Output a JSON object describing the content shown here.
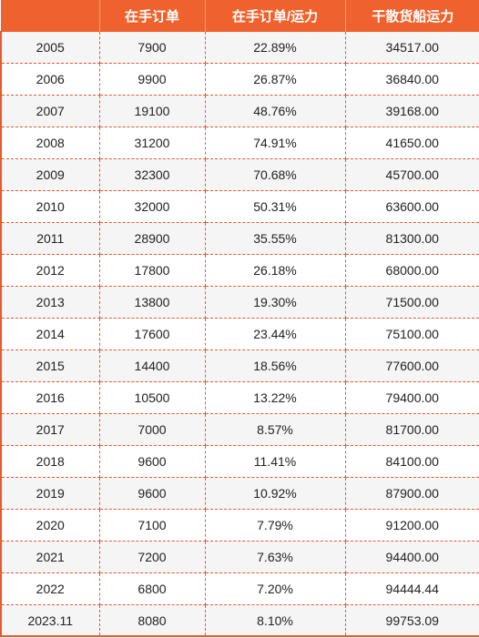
{
  "table": {
    "headers": [
      "",
      "在手订单",
      "在手订单/运力",
      "干散货船运力"
    ],
    "rows": [
      [
        "2005",
        "7900",
        "22.89%",
        "34517.00"
      ],
      [
        "2006",
        "9900",
        "26.87%",
        "36840.00"
      ],
      [
        "2007",
        "19100",
        "48.76%",
        "39168.00"
      ],
      [
        "2008",
        "31200",
        "74.91%",
        "41650.00"
      ],
      [
        "2009",
        "32300",
        "70.68%",
        "45700.00"
      ],
      [
        "2010",
        "32000",
        "50.31%",
        "63600.00"
      ],
      [
        "2011",
        "28900",
        "35.55%",
        "81300.00"
      ],
      [
        "2012",
        "17800",
        "26.18%",
        "68000.00"
      ],
      [
        "2013",
        "13800",
        "19.30%",
        "71500.00"
      ],
      [
        "2014",
        "17600",
        "23.44%",
        "75100.00"
      ],
      [
        "2015",
        "14400",
        "18.56%",
        "77600.00"
      ],
      [
        "2016",
        "10500",
        "13.22%",
        "79400.00"
      ],
      [
        "2017",
        "7000",
        "8.57%",
        "81700.00"
      ],
      [
        "2018",
        "9600",
        "11.41%",
        "84100.00"
      ],
      [
        "2019",
        "9600",
        "10.92%",
        "87900.00"
      ],
      [
        "2020",
        "7100",
        "7.79%",
        "91200.00"
      ],
      [
        "2021",
        "7200",
        "7.63%",
        "94400.00"
      ],
      [
        "2022",
        "6800",
        "7.20%",
        "94444.44"
      ],
      [
        "2023.11",
        "8080",
        "8.10%",
        "99753.09"
      ]
    ]
  },
  "colors": {
    "header_bg": "#f0622d",
    "border": "#e85a2a",
    "stripe": "#f5f5f5"
  }
}
